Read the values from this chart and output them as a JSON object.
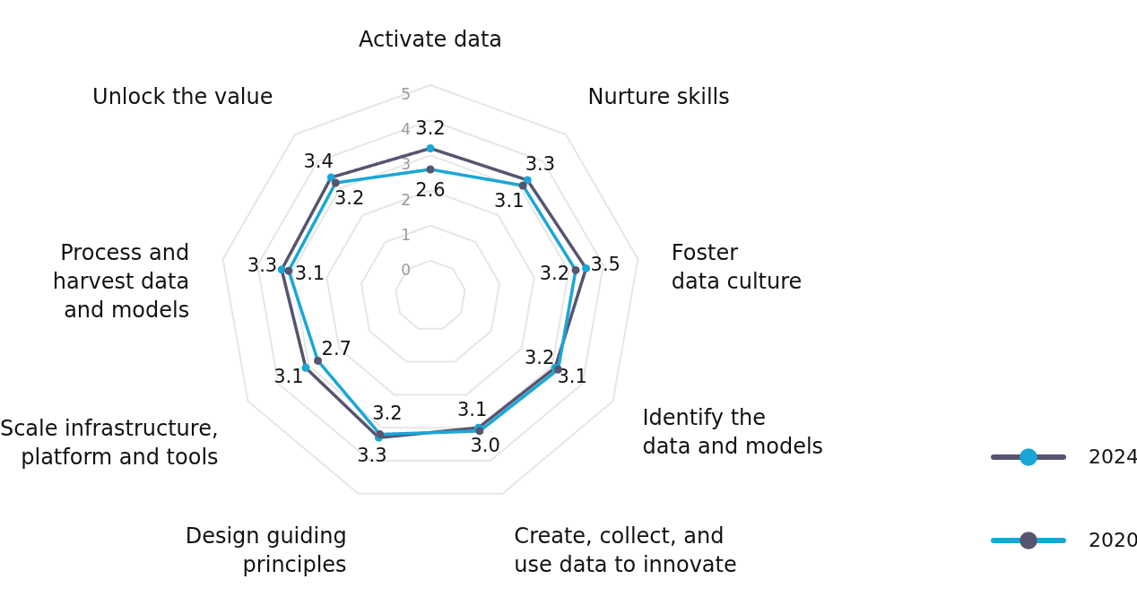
{
  "chart_data": {
    "type": "radar",
    "categories": [
      "Activate data",
      "Nurture skills",
      "Foster\ndata culture",
      "Identify the\ndata and models",
      "Create, collect, and\nuse data to innovate",
      "Design guiding\nprinciples",
      "Scale infrastructure,\nplatform and tools",
      "Process and\nharvest data\nand models",
      "Unlock the value"
    ],
    "series": [
      {
        "name": "2024",
        "color": "#555570",
        "values": [
          3.2,
          3.3,
          3.5,
          3.1,
          3.0,
          3.3,
          3.1,
          3.3,
          3.4
        ],
        "value_labels": [
          "3.2",
          "3.3",
          "3.5",
          "3.1",
          "3.0",
          "3.3",
          "3.1",
          "3.3",
          "3.4"
        ]
      },
      {
        "name": "2020",
        "color": "#1aa7d6",
        "values": [
          2.6,
          3.1,
          3.2,
          3.2,
          3.1,
          3.2,
          2.7,
          3.1,
          3.2
        ],
        "value_labels": [
          "2.6",
          "3.1",
          "3.2",
          "3.2",
          "3.1",
          "3.2",
          "2.7",
          "3.1",
          "3.2"
        ]
      }
    ],
    "ylim": [
      -1,
      5
    ],
    "yticks": [
      0,
      1,
      2,
      3,
      4,
      5
    ],
    "grid": true,
    "marker": "circle",
    "line_style": "solid",
    "legend": "right"
  }
}
